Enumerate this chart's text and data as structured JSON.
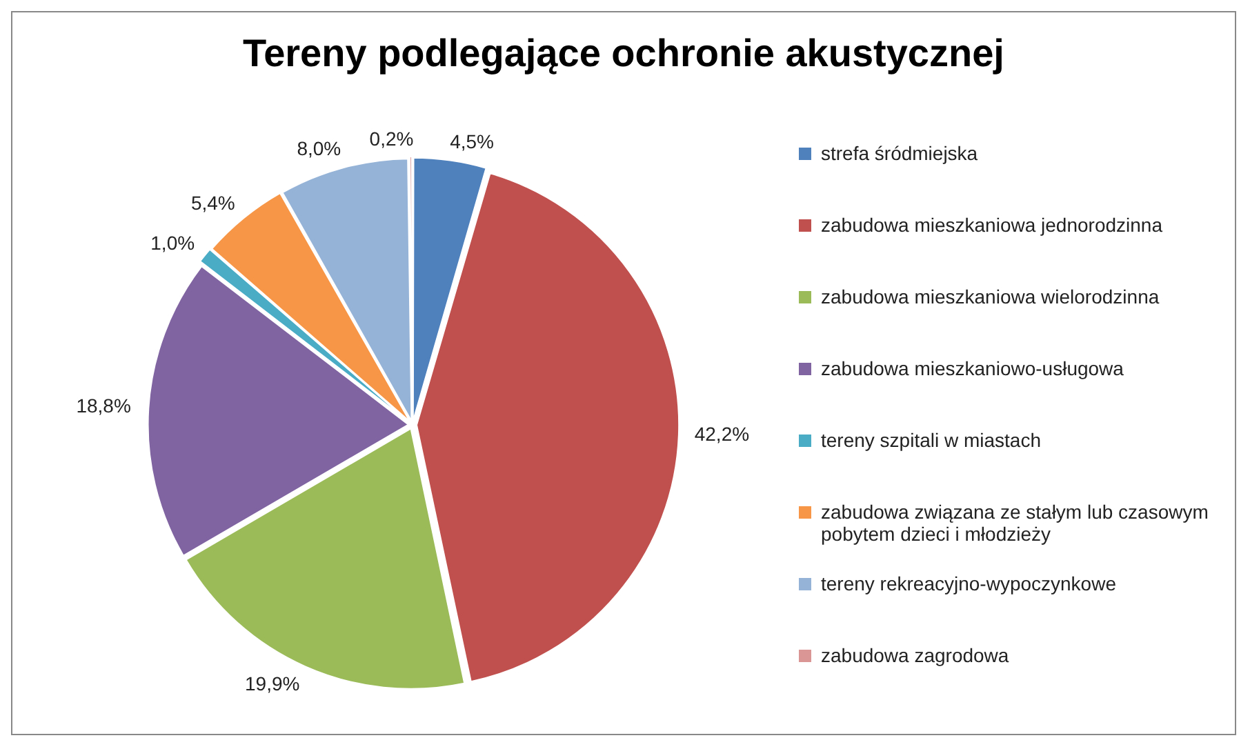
{
  "chart_data": {
    "type": "pie",
    "title": "Tereny podlegające ochronie akustycznej",
    "categories": [
      "strefa śródmiejska",
      "zabudowa mieszkaniowa jednorodzinna",
      "zabudowa mieszkaniowa wielorodzinna",
      "zabudowa mieszkaniowo-usługowa",
      "tereny szpitali w miastach",
      "zabudowa związana ze stałym lub czasowym pobytem dzieci i młodzieży",
      "tereny rekreacyjno-wypoczynkowe",
      "zabudowa zagrodowa"
    ],
    "values": [
      4.5,
      42.2,
      19.9,
      18.8,
      1.0,
      5.4,
      8.0,
      0.2
    ],
    "value_labels": [
      "4,5%",
      "42,2%",
      "19,9%",
      "18,8%",
      "1,0%",
      "5,4%",
      "8,0%",
      "0,2%"
    ],
    "colors": [
      "#4f81bd",
      "#c0504d",
      "#9bbb59",
      "#8064a2",
      "#4bacc6",
      "#f79646",
      "#95b3d7",
      "#d99694"
    ],
    "legend": "right"
  }
}
